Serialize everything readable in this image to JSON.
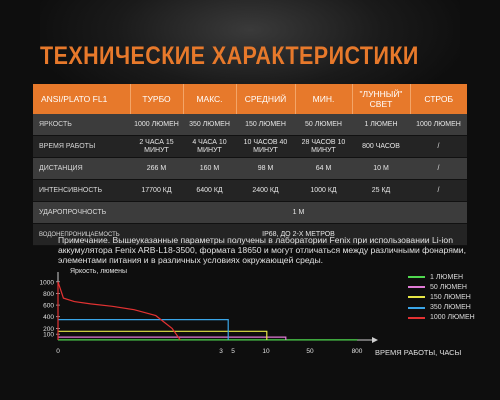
{
  "title": "ТЕХНИЧЕСКИЕ ХАРАКТЕРИСТИКИ",
  "table": {
    "headers": [
      "ANSI/PLATO FL1",
      "ТУРБО",
      "МАКС.",
      "СРЕДНИЙ",
      "МИН.",
      "\"ЛУННЫЙ\" СВЕТ",
      "СТРОБ"
    ],
    "rows": [
      {
        "label": "ЯРКОСТЬ",
        "cells": [
          "1000 ЛЮМЕН",
          "350 ЛЮМЕН",
          "150 ЛЮМЕН",
          "50 ЛЮМЕН",
          "1 ЛЮМЕН",
          "1000 ЛЮМЕН"
        ]
      },
      {
        "label": "ВРЕМЯ РАБОТЫ",
        "cells": [
          "2 ЧАСА 15 МИНУТ",
          "4 ЧАСА 10 МИНУТ",
          "10 ЧАСОВ 40 МИНУТ",
          "28 ЧАСОВ 10 МИНУТ",
          "800 ЧАСОВ",
          "/"
        ]
      },
      {
        "label": "ДИСТАНЦИЯ",
        "cells": [
          "266 М",
          "160 М",
          "98 М",
          "64 М",
          "10 М",
          "/"
        ]
      },
      {
        "label": "ИНТЕНСИВНОСТЬ",
        "cells": [
          "17700 КД",
          "6400 КД",
          "2400 КД",
          "1000 КД",
          "25 КД",
          "/"
        ]
      },
      {
        "label": "УДАРОПРОЧНОСТЬ",
        "value": "1 М"
      },
      {
        "label": "ВОДОНЕПРОНИЦАЕМОСТЬ",
        "value": "IP68, ДО 2-Х МЕТРОВ"
      }
    ]
  },
  "note": "Примечание. Вышеуказанные параметры получены в лаборатории Fenix при использовании Li-ion аккумулятора Fenix ARB-L18-3500, формата 18650 и могут отличаться между различными фонарями, элементами питания и в различных условиях окружающей среды.",
  "colors": {
    "accent": "#e7792b"
  },
  "chart_data": {
    "type": "line",
    "ylabel": "Яркость, люмены",
    "xlabel": "ВРЕМЯ РАБОТЫ, ЧАСЫ",
    "y_ticks": [
      100,
      200,
      400,
      600,
      800,
      1000
    ],
    "x_ticks": [
      "0",
      "3",
      "5",
      "10",
      "50",
      "800"
    ],
    "y_lim": [
      0,
      1100
    ],
    "series": [
      {
        "name": "1 ЛЮМЕН",
        "color": "#4fd84f",
        "x": [
          0,
          800
        ],
        "y": [
          1,
          1
        ]
      },
      {
        "name": "50 ЛЮМЕН",
        "color": "#e07ad6",
        "x": [
          0,
          28
        ],
        "y": [
          50,
          50
        ]
      },
      {
        "name": "150 ЛЮМЕН",
        "color": "#e6e645",
        "x": [
          0,
          10.7
        ],
        "y": [
          150,
          150
        ]
      },
      {
        "name": "350 ЛЮМЕН",
        "color": "#3aa6e8",
        "x": [
          0,
          4.2
        ],
        "y": [
          350,
          350
        ]
      },
      {
        "name": "1000 ЛЮМЕН",
        "color": "#e33232",
        "x": [
          0,
          0.1,
          0.3,
          0.6,
          1.0,
          1.4,
          1.8,
          2.1,
          2.25
        ],
        "y": [
          1000,
          720,
          660,
          620,
          580,
          520,
          420,
          200,
          0
        ]
      }
    ]
  }
}
